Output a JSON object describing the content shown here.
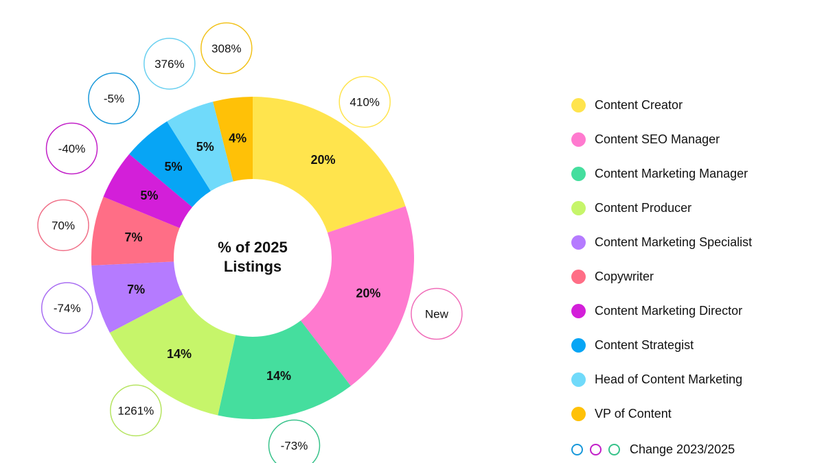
{
  "chart_data": {
    "type": "pie",
    "center_title_lines": [
      "% of 2025",
      "Listings"
    ],
    "slices": [
      {
        "name": "Content Creator",
        "value": 20,
        "label": "20%",
        "change": "410%",
        "color": "#FFE44D",
        "ring_color": "#FFE44D"
      },
      {
        "name": "Content SEO Manager",
        "value": 20,
        "label": "20%",
        "change": "New",
        "color": "#FF7ACF",
        "ring_color": "#F06BB8"
      },
      {
        "name": "Content Marketing Manager",
        "value": 14,
        "label": "14%",
        "change": "-73%",
        "color": "#45DE9E",
        "ring_color": "#37C28A"
      },
      {
        "name": "Content Producer",
        "value": 14,
        "label": "14%",
        "change": "1261%",
        "color": "#C6F56A",
        "ring_color": "#B5E460"
      },
      {
        "name": "Content Marketing Specialist",
        "value": 7,
        "label": "7%",
        "change": "-74%",
        "color": "#B57BFF",
        "ring_color": "#A86CF2"
      },
      {
        "name": "Copywriter",
        "value": 7,
        "label": "7%",
        "change": "70%",
        "color": "#FF6E86",
        "ring_color": "#F07088"
      },
      {
        "name": "Content Marketing Director",
        "value": 5,
        "label": "5%",
        "change": "-40%",
        "color": "#D31FD9",
        "ring_color": "#C21FC8"
      },
      {
        "name": "Content Strategist",
        "value": 5,
        "label": "5%",
        "change": "-5%",
        "color": "#07A5F5",
        "ring_color": "#1898DA"
      },
      {
        "name": "Head of Content Marketing",
        "value": 5,
        "label": "5%",
        "change": "376%",
        "color": "#70DAFA",
        "ring_color": "#6AD0F0"
      },
      {
        "name": "VP of Content",
        "value": 4,
        "label": "4%",
        "change": "308%",
        "color": "#FFC107",
        "ring_color": "#F2C21A"
      }
    ],
    "legend_position": "right",
    "change_legend": {
      "label": "Change  2023/2025",
      "ring_colors": [
        "#1898DA",
        "#C21FC8",
        "#37C28A"
      ]
    }
  }
}
